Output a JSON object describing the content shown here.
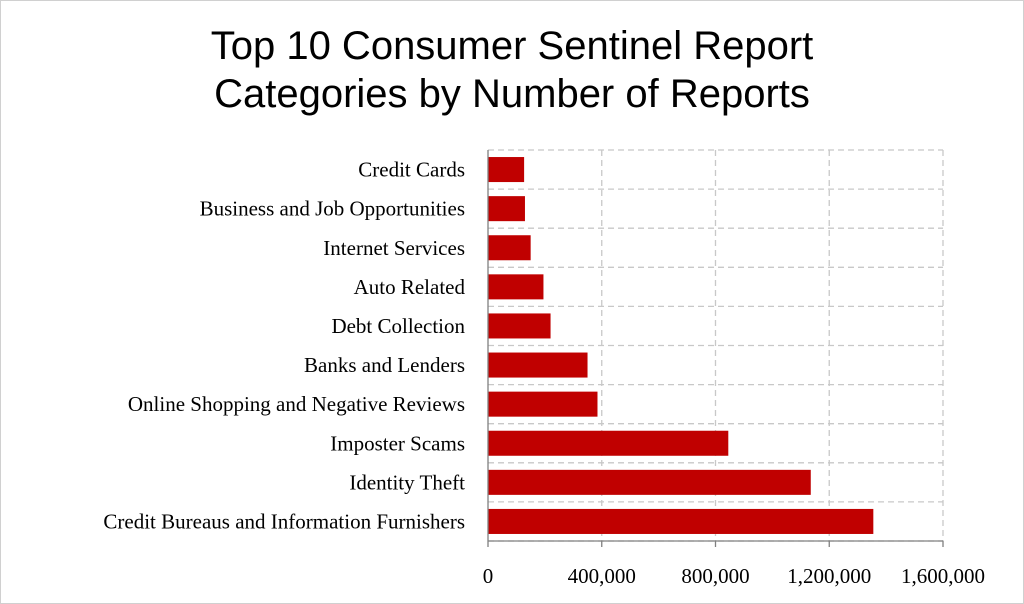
{
  "chart_data": {
    "type": "bar",
    "orientation": "horizontal",
    "title_lines": [
      "Top 10 Consumer Sentinel Report",
      "Categories by Number of Reports"
    ],
    "categories": [
      "Credit Cards",
      "Business and Job Opportunities",
      "Internet Services",
      "Auto Related",
      "Debt Collection",
      "Banks and Lenders",
      "Online Shopping and Negative Reviews",
      "Imposter Scams",
      "Identity Theft",
      "Credit Bureaus and Information Furnishers"
    ],
    "values": [
      127000,
      130000,
      150000,
      195000,
      220000,
      350000,
      385000,
      845000,
      1135000,
      1355000
    ],
    "xlim": [
      0,
      1600000
    ],
    "x_ticks": [
      0,
      400000,
      800000,
      1200000,
      1600000
    ],
    "x_tick_labels": [
      "0",
      "400,000",
      "800,000",
      "1,200,000",
      "1,600,000"
    ],
    "bar_color": "#c00000",
    "grid": "dashed",
    "legend": "none"
  }
}
